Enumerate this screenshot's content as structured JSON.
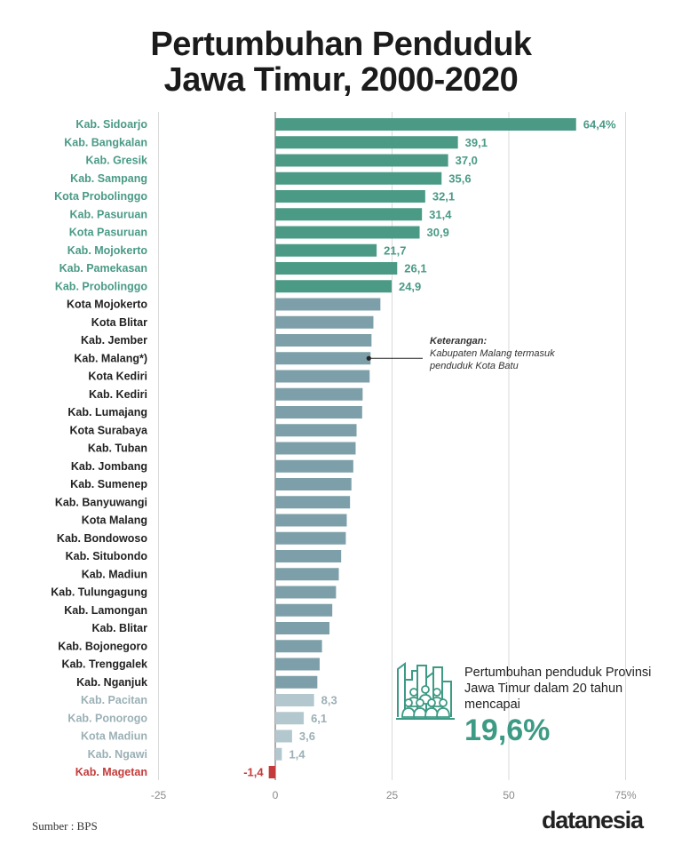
{
  "title_line1": "Pertumbuhan Penduduk",
  "title_line2": "Jawa Timur, 2000-2020",
  "chart_data": {
    "type": "bar",
    "orientation": "horizontal",
    "title": "Pertumbuhan Penduduk Jawa Timur, 2000-2020",
    "xlim": [
      -25,
      75
    ],
    "xticks": [
      "-25",
      "0",
      "25",
      "50",
      "75%"
    ],
    "grid": true,
    "colors": {
      "top": "#4a9a86",
      "middle": "#7d9fa9",
      "low": "#b3c8ce",
      "negative": "#c53b3b",
      "label_top": "#4a9a86",
      "label_mid": "#222222",
      "label_low": "#9bb0b6",
      "label_neg": "#c53b3b"
    },
    "bars": [
      {
        "category": "Kab. Sidoarjo",
        "value": 64.4,
        "label": "64,4%",
        "group": "top"
      },
      {
        "category": "Kab. Bangkalan",
        "value": 39.1,
        "label": "39,1",
        "group": "top"
      },
      {
        "category": "Kab. Gresik",
        "value": 37.0,
        "label": "37,0",
        "group": "top"
      },
      {
        "category": "Kab. Sampang",
        "value": 35.6,
        "label": "35,6",
        "group": "top"
      },
      {
        "category": "Kota Probolinggo",
        "value": 32.1,
        "label": "32,1",
        "group": "top"
      },
      {
        "category": "Kab. Pasuruan",
        "value": 31.4,
        "label": "31,4",
        "group": "top"
      },
      {
        "category": "Kota Pasuruan",
        "value": 30.9,
        "label": "30,9",
        "group": "top"
      },
      {
        "category": "Kab. Mojokerto",
        "value": 21.7,
        "label": "21,7",
        "group": "top"
      },
      {
        "category": "Kab. Pamekasan",
        "value": 26.1,
        "label": "26,1",
        "group": "top"
      },
      {
        "category": "Kab. Probolinggo",
        "value": 24.9,
        "label": "24,9",
        "group": "top"
      },
      {
        "category": "Kota Mojokerto",
        "value": 22.5,
        "label": "",
        "group": "middle"
      },
      {
        "category": "Kota Blitar",
        "value": 21.0,
        "label": "",
        "group": "middle"
      },
      {
        "category": "Kab. Jember",
        "value": 20.6,
        "label": "",
        "group": "middle"
      },
      {
        "category": "Kab. Malang*)",
        "value": 20.4,
        "label": "",
        "group": "middle"
      },
      {
        "category": "Kota Kediri",
        "value": 20.2,
        "label": "",
        "group": "middle"
      },
      {
        "category": "Kab. Kediri",
        "value": 18.7,
        "label": "",
        "group": "middle"
      },
      {
        "category": "Kab. Lumajang",
        "value": 18.6,
        "label": "",
        "group": "middle"
      },
      {
        "category": "Kota Surabaya",
        "value": 17.4,
        "label": "",
        "group": "middle"
      },
      {
        "category": "Kab. Tuban",
        "value": 17.2,
        "label": "",
        "group": "middle"
      },
      {
        "category": "Kab. Jombang",
        "value": 16.7,
        "label": "",
        "group": "middle"
      },
      {
        "category": "Kab. Sumenep",
        "value": 16.3,
        "label": "",
        "group": "middle"
      },
      {
        "category": "Kab. Banyuwangi",
        "value": 16.0,
        "label": "",
        "group": "middle"
      },
      {
        "category": "Kota Malang",
        "value": 15.3,
        "label": "",
        "group": "middle"
      },
      {
        "category": "Kab. Bondowoso",
        "value": 15.1,
        "label": "",
        "group": "middle"
      },
      {
        "category": "Kab. Situbondo",
        "value": 14.1,
        "label": "",
        "group": "middle"
      },
      {
        "category": "Kab. Madiun",
        "value": 13.6,
        "label": "",
        "group": "middle"
      },
      {
        "category": "Kab. Tulungagung",
        "value": 13.0,
        "label": "",
        "group": "middle"
      },
      {
        "category": "Kab. Lamongan",
        "value": 12.2,
        "label": "",
        "group": "middle"
      },
      {
        "category": "Kab. Blitar",
        "value": 11.6,
        "label": "",
        "group": "middle"
      },
      {
        "category": "Kab. Bojonegoro",
        "value": 10.0,
        "label": "",
        "group": "middle"
      },
      {
        "category": "Kab. Trenggalek",
        "value": 9.5,
        "label": "",
        "group": "middle"
      },
      {
        "category": "Kab. Nganjuk",
        "value": 9.0,
        "label": "",
        "group": "middle"
      },
      {
        "category": "Kab. Pacitan",
        "value": 8.3,
        "label": "8,3",
        "group": "low"
      },
      {
        "category": "Kab. Ponorogo",
        "value": 6.1,
        "label": "6,1",
        "group": "low"
      },
      {
        "category": "Kota Madiun",
        "value": 3.6,
        "label": "3,6",
        "group": "low"
      },
      {
        "category": "Kab. Ngawi",
        "value": 1.4,
        "label": "1,4",
        "group": "low"
      },
      {
        "category": "Kab. Magetan",
        "value": -1.4,
        "label": "-1,4",
        "group": "negative"
      }
    ],
    "annotation": {
      "target": "Kab. Malang*)",
      "heading": "Keterangan:",
      "text": "Kabupaten Malang termasuk penduduk Kota Batu"
    }
  },
  "callout": {
    "text": "Pertumbuhan penduduk Provinsi Jawa Timur dalam 20 tahun mencapai",
    "value": "19,6%",
    "icon": "crowd-city-icon"
  },
  "source": "Sumber : BPS",
  "logo": "datanesia"
}
